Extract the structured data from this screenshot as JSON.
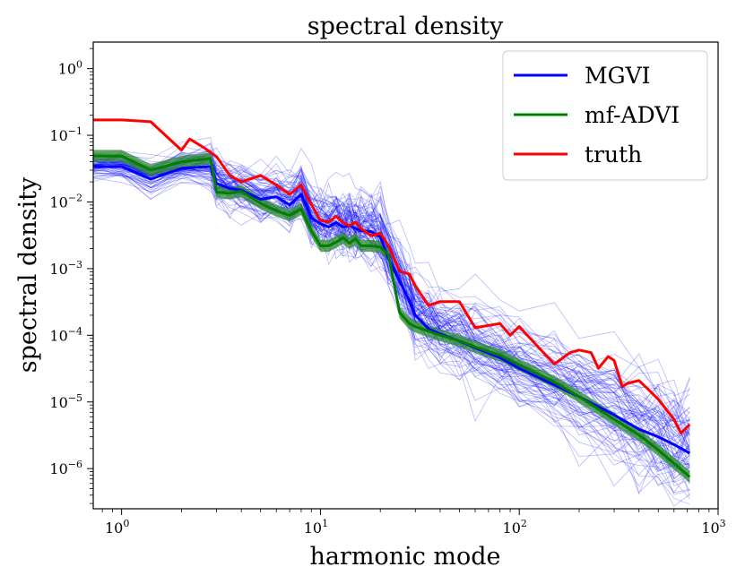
{
  "chart_data": {
    "type": "line",
    "title": "spectral density",
    "xlabel": "harmonic mode",
    "ylabel": "spectral density",
    "xscale": "log",
    "yscale": "log",
    "xlim": [
      0.72,
      1000
    ],
    "ylim": [
      2.5e-07,
      2.5
    ],
    "grid": false,
    "legend_position": "upper-right",
    "x_ticks": [
      {
        "base": "10",
        "exp": "0",
        "value": 1
      },
      {
        "base": "10",
        "exp": "1",
        "value": 10
      },
      {
        "base": "10",
        "exp": "2",
        "value": 100
      },
      {
        "base": "10",
        "exp": "3",
        "value": 1000
      }
    ],
    "y_ticks": [
      {
        "base": "10",
        "exp": "0",
        "value": 1
      },
      {
        "base": "10",
        "exp": "−1",
        "value": 0.1
      },
      {
        "base": "10",
        "exp": "−2",
        "value": 0.01
      },
      {
        "base": "10",
        "exp": "−3",
        "value": 0.001
      },
      {
        "base": "10",
        "exp": "−4",
        "value": 0.0001
      },
      {
        "base": "10",
        "exp": "−5",
        "value": 1e-05
      },
      {
        "base": "10",
        "exp": "−6",
        "value": 1e-06
      }
    ],
    "series": [
      {
        "name": "MGVI",
        "color": "#0000ff",
        "x": [
          0.72,
          1,
          1.4,
          2,
          2.8,
          3,
          3.5,
          4,
          5,
          6,
          7,
          8,
          9,
          10,
          11,
          12,
          13,
          14,
          15,
          16,
          18,
          20,
          22,
          25,
          28,
          30,
          35,
          40,
          50,
          60,
          80,
          100,
          150,
          200,
          300,
          400,
          500,
          600,
          720
        ],
        "y": [
          0.034,
          0.034,
          0.022,
          0.032,
          0.034,
          0.019,
          0.016,
          0.015,
          0.011,
          0.012,
          0.009,
          0.013,
          0.0058,
          0.0047,
          0.0042,
          0.0049,
          0.0042,
          0.0044,
          0.004,
          0.0037,
          0.0036,
          0.003,
          0.0014,
          0.00065,
          0.00033,
          0.0002,
          0.000125,
          0.000105,
          8.2e-05,
          6.5e-05,
          4.6e-05,
          3.2e-05,
          1.8e-05,
          1.2e-05,
          6.4e-06,
          3.9e-06,
          3e-06,
          2.3e-06,
          1.7e-06
        ]
      },
      {
        "name": "mf-ADVI",
        "color": "#008000",
        "x": [
          0.72,
          1,
          1.4,
          2,
          2.8,
          3,
          3.5,
          4,
          5,
          6,
          7,
          8,
          9,
          10,
          11,
          12,
          13,
          14,
          15,
          16,
          18,
          20,
          22,
          25,
          28,
          30,
          35,
          40,
          50,
          60,
          80,
          100,
          150,
          200,
          300,
          400,
          500,
          600,
          720
        ],
        "y": [
          0.049,
          0.049,
          0.03,
          0.04,
          0.045,
          0.014,
          0.0135,
          0.0145,
          0.0095,
          0.0074,
          0.0063,
          0.0078,
          0.0037,
          0.0022,
          0.0022,
          0.0025,
          0.0029,
          0.0024,
          0.0028,
          0.0022,
          0.0022,
          0.0021,
          0.0016,
          0.00022,
          0.00015,
          0.000135,
          0.000115,
          0.0001,
          8.3e-05,
          6.7e-05,
          5e-05,
          3.6e-05,
          2e-05,
          1.2e-05,
          5.5e-06,
          3.2e-06,
          1.9e-06,
          1.2e-06,
          7.5e-07
        ]
      },
      {
        "name": "truth",
        "color": "#ff0000",
        "x": [
          0.72,
          1,
          1.4,
          2,
          2.2,
          2.6,
          3,
          3.5,
          4,
          5,
          6,
          7,
          8,
          9,
          10,
          11,
          12,
          13,
          14,
          15,
          16,
          18,
          20,
          22,
          25,
          28,
          30,
          35,
          40,
          45,
          50,
          60,
          80,
          90,
          100,
          120,
          150,
          180,
          200,
          230,
          250,
          280,
          300,
          330,
          350,
          400,
          450,
          500,
          600,
          650,
          720
        ],
        "y": [
          0.17,
          0.17,
          0.16,
          0.06,
          0.088,
          0.065,
          0.048,
          0.025,
          0.02,
          0.025,
          0.018,
          0.013,
          0.018,
          0.0091,
          0.0053,
          0.005,
          0.0061,
          0.0049,
          0.0044,
          0.005,
          0.004,
          0.0031,
          0.0034,
          0.0022,
          0.00091,
          0.00083,
          0.00055,
          0.00028,
          0.00032,
          0.00032,
          0.00032,
          0.00013,
          0.00015,
          0.0001,
          0.000135,
          7.5e-05,
          3.7e-05,
          5.5e-05,
          6e-05,
          5.5e-05,
          3.2e-05,
          4.8e-05,
          4.2e-05,
          1.7e-05,
          1.9e-05,
          2.1e-05,
          1.5e-05,
          1.1e-05,
          5.5e-06,
          3.4e-06,
          4.6e-06
        ]
      }
    ],
    "posterior_samples": {
      "name": "MGVI samples",
      "color": "#0000ff",
      "count": 80,
      "spread_low_dex": 0.12,
      "spread_high_dex": 0.55
    },
    "advi_band": {
      "color": "#2e8b2e",
      "width_dex": 0.09
    }
  }
}
